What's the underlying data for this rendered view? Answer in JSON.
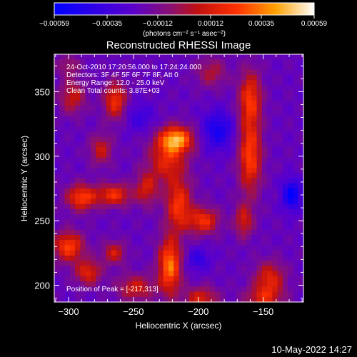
{
  "chart_data": {
    "type": "heatmap",
    "title": "Reconstructed RHESSI Image",
    "xlabel": "Heliocentric X (arcsec)",
    "ylabel": "Heliocentric Y (arcsec)",
    "xlim": [
      -311,
      -119
    ],
    "ylim": [
      187,
      379
    ],
    "x_ticks": [
      -300,
      -250,
      -200,
      -150
    ],
    "y_ticks": [
      200,
      250,
      300,
      350
    ],
    "colorbar": {
      "range": [
        -0.00059,
        0.00059
      ],
      "tick_values": [
        -0.00059,
        -0.00035,
        -0.00012,
        0.00012,
        0.00035,
        0.00059
      ],
      "tick_labels": [
        "-0.00059",
        "-0.00035",
        "-0.00012",
        "0.00012",
        "0.00035",
        "0.00059"
      ],
      "unit_label": "(photons cm⁻² s⁻¹ asec⁻²)"
    },
    "annotations": [
      "24-Oct-2010 17:20:56.000 to 17:24:24.000",
      "Detectors: 3F 4F 5F 6F 7F 8F, Att 0",
      "Energy Range: 12.0 - 25.0 keV",
      "Clean    Total counts: 3.87E+03"
    ],
    "peak_label": "Position of Peak = [-217,313]",
    "peak": [
      -217,
      313
    ],
    "sources": [
      {
        "x": -217,
        "y": 313,
        "amp": 0.00059,
        "sx": 9,
        "sy": 7
      },
      {
        "x": -224,
        "y": 297,
        "amp": 0.00035,
        "sx": 10,
        "sy": 12
      },
      {
        "x": -275,
        "y": 305,
        "amp": 0.00028,
        "sx": 6,
        "sy": 8
      },
      {
        "x": -264,
        "y": 343,
        "amp": 0.0004,
        "sx": 6,
        "sy": 10
      },
      {
        "x": -297,
        "y": 346,
        "amp": 0.00028,
        "sx": 7,
        "sy": 9
      },
      {
        "x": -290,
        "y": 268,
        "amp": 0.00045,
        "sx": 8,
        "sy": 7
      },
      {
        "x": -265,
        "y": 270,
        "amp": 0.0004,
        "sx": 9,
        "sy": 6
      },
      {
        "x": -240,
        "y": 275,
        "amp": 0.0003,
        "sx": 6,
        "sy": 9
      },
      {
        "x": -215,
        "y": 262,
        "amp": 0.00042,
        "sx": 7,
        "sy": 14
      },
      {
        "x": -196,
        "y": 250,
        "amp": 0.0004,
        "sx": 8,
        "sy": 7
      },
      {
        "x": -300,
        "y": 230,
        "amp": 0.00045,
        "sx": 8,
        "sy": 8
      },
      {
        "x": -285,
        "y": 210,
        "amp": 0.00035,
        "sx": 7,
        "sy": 7
      },
      {
        "x": -265,
        "y": 225,
        "amp": 0.0003,
        "sx": 6,
        "sy": 6
      },
      {
        "x": -222,
        "y": 215,
        "amp": 0.00055,
        "sx": 6,
        "sy": 15
      },
      {
        "x": -248,
        "y": 198,
        "amp": 0.0003,
        "sx": 10,
        "sy": 7
      },
      {
        "x": -198,
        "y": 190,
        "amp": 0.00032,
        "sx": 9,
        "sy": 6
      },
      {
        "x": -160,
        "y": 345,
        "amp": 0.0004,
        "sx": 6,
        "sy": 15
      },
      {
        "x": -160,
        "y": 300,
        "amp": 0.00045,
        "sx": 6,
        "sy": 20
      },
      {
        "x": -165,
        "y": 250,
        "amp": 0.0003,
        "sx": 5,
        "sy": 9
      },
      {
        "x": -145,
        "y": 205,
        "amp": 0.00035,
        "sx": 8,
        "sy": 9
      },
      {
        "x": -150,
        "y": 190,
        "amp": 0.0003,
        "sx": 10,
        "sy": 6
      },
      {
        "x": -190,
        "y": 365,
        "amp": 0.00022,
        "sx": 8,
        "sy": 8
      },
      {
        "x": -128,
        "y": 270,
        "amp": -0.0004,
        "sx": 5,
        "sy": 8
      },
      {
        "x": -185,
        "y": 320,
        "amp": -0.0003,
        "sx": 8,
        "sy": 10
      },
      {
        "x": -245,
        "y": 330,
        "amp": -0.00015,
        "sx": 8,
        "sy": 8
      },
      {
        "x": -200,
        "y": 220,
        "amp": -0.0002,
        "sx": 6,
        "sy": 6
      },
      {
        "x": -300,
        "y": 370,
        "amp": 0.00018,
        "sx": 6,
        "sy": 6
      }
    ]
  },
  "footer_date": "10-May-2022 14:27"
}
